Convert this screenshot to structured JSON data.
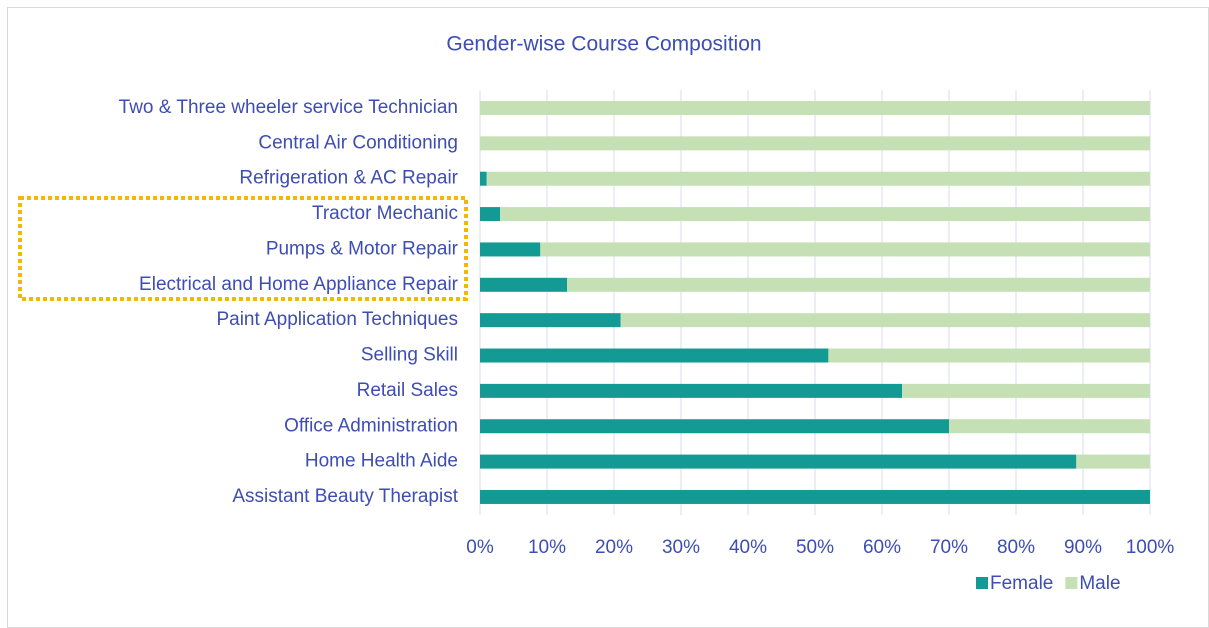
{
  "chart_data": {
    "type": "stacked_bar_horizontal",
    "title": "Gender-wise Course Composition",
    "categories": [
      "Two & Three wheeler service Technician",
      "Central Air Conditioning",
      "Refrigeration & AC Repair",
      "Tractor Mechanic",
      "Pumps & Motor Repair",
      "Electrical and Home Appliance Repair",
      "Paint Application Techniques",
      "Selling Skill",
      "Retail Sales",
      "Office Administration",
      "Home Health Aide",
      "Assistant Beauty Therapist"
    ],
    "series": [
      {
        "name": "Female",
        "color": "#139a94",
        "values": [
          0,
          0,
          1,
          3,
          9,
          13,
          21,
          52,
          63,
          70,
          89,
          100
        ]
      },
      {
        "name": "Male",
        "color": "#c5e0b4",
        "values": [
          100,
          100,
          99,
          97,
          91,
          87,
          79,
          48,
          37,
          30,
          11,
          0
        ]
      }
    ],
    "xlim": [
      0,
      100
    ],
    "xticks": [
      {
        "value": 0,
        "label": "0%"
      },
      {
        "value": 10,
        "label": "10%"
      },
      {
        "value": 20,
        "label": "20%"
      },
      {
        "value": 30,
        "label": "30%"
      },
      {
        "value": 40,
        "label": "40%"
      },
      {
        "value": 50,
        "label": "50%"
      },
      {
        "value": 60,
        "label": "60%"
      },
      {
        "value": 70,
        "label": "70%"
      },
      {
        "value": 80,
        "label": "80%"
      },
      {
        "value": 90,
        "label": "90%"
      },
      {
        "value": 100,
        "label": "100%"
      }
    ],
    "grid": true,
    "legend": "bottom-right"
  }
}
